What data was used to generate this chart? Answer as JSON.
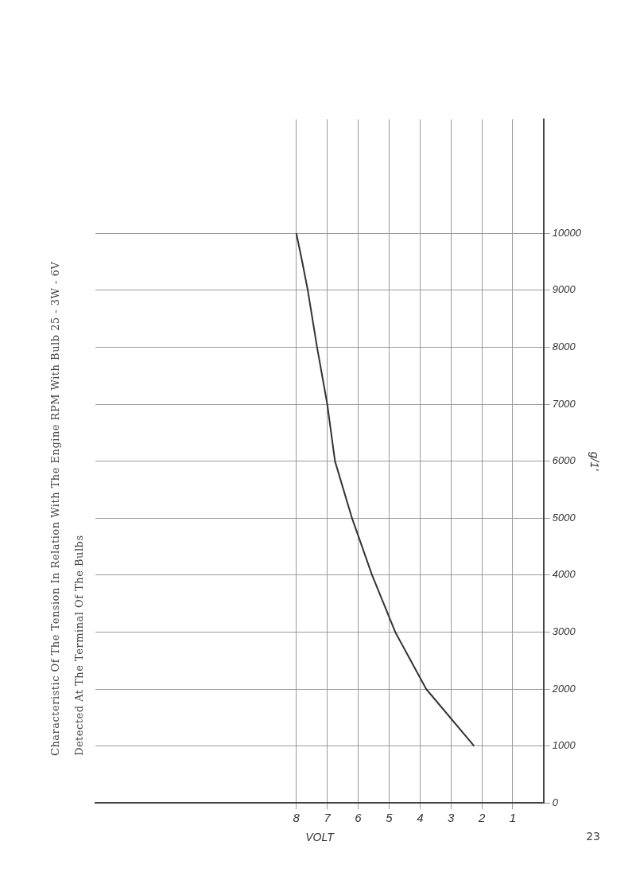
{
  "chart_data": {
    "type": "line",
    "title": "Characteristic Of The Tension In Relation With The Engine RPM With Bulb 25 - 3W - 6V",
    "subtitle": "Detected At The Terminal Of The Bulbs",
    "xlabel": "VOLT",
    "ylabel": "g/1'",
    "annotations": [
      "23"
    ],
    "x": [
      2.25,
      3.8,
      4.8,
      5.55,
      6.2,
      6.75,
      7.0,
      7.33,
      7.63,
      7.81,
      8.0
    ],
    "series": [
      {
        "color": "#333333",
        "values": [
          1000,
          2000,
          3000,
          4000,
          5000,
          6000,
          7000,
          8000,
          9000,
          9500,
          10000
        ]
      }
    ],
    "xlim": [
      14.5,
      0
    ],
    "xticks": [
      1,
      2,
      3,
      4,
      5,
      6,
      7,
      8
    ],
    "ylim": [
      0,
      12000
    ],
    "yticks": [
      0,
      1000,
      2000,
      3000,
      4000,
      5000,
      6000,
      7000,
      8000,
      9000,
      10000
    ],
    "grid": true,
    "legend": false,
    "marker": "none",
    "line_style": "solid"
  }
}
